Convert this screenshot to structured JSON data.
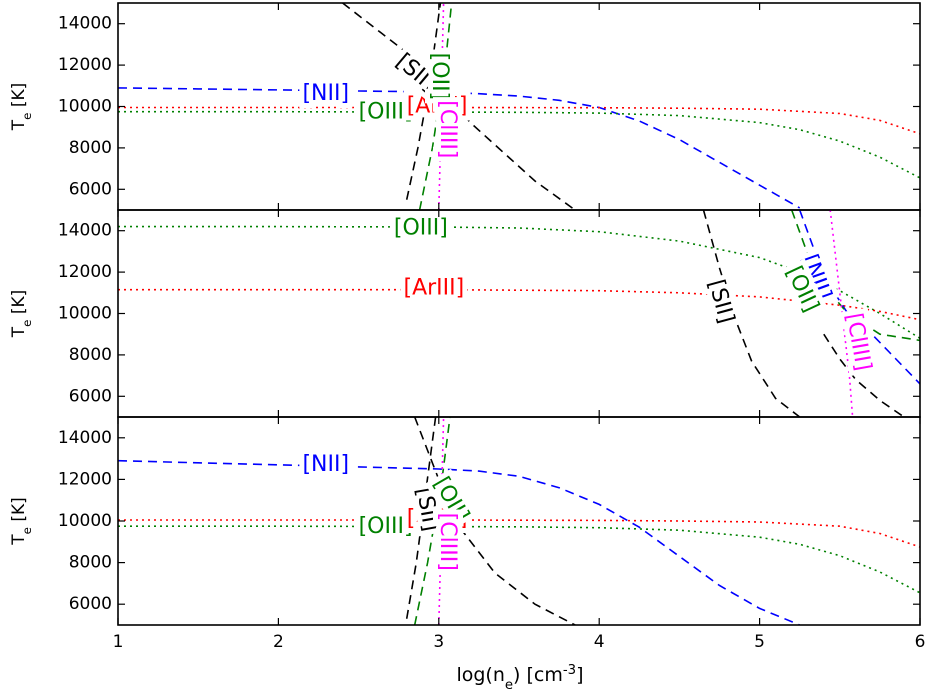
{
  "figure": {
    "shared_xlabel": "log(n_e) [cm^-3]",
    "shared_ylabel": "T_e [K]"
  },
  "colors": {
    "NII": "#0000ff",
    "OIII": "#008000",
    "ArIII": "#ff0000",
    "SII": "#000000",
    "OII": "#008000",
    "ClIII": "#ff00ff"
  },
  "chart_data": [
    {
      "type": "line",
      "xlabel": "log(n_e) [cm^-3]",
      "ylabel": "T_e [K]",
      "xlim": [
        1,
        6
      ],
      "ylim": [
        5000,
        15000
      ],
      "xticks": [
        "1",
        "2",
        "3",
        "4",
        "5",
        "6"
      ],
      "yticks": [
        "6000",
        "8000",
        "10000",
        "12000",
        "14000"
      ],
      "series": [
        {
          "name": "[NII]",
          "style": "dashed",
          "color": "#0000ff",
          "x": [
            1,
            1.5,
            2,
            2.5,
            3,
            3.25,
            3.5,
            3.75,
            4,
            4.25,
            4.5,
            4.75,
            5,
            5.25
          ],
          "y": [
            10900,
            10850,
            10800,
            10750,
            10700,
            10620,
            10500,
            10300,
            9950,
            9300,
            8400,
            7300,
            6200,
            5100
          ],
          "label_x": 2.15,
          "label_y": 10600
        },
        {
          "name": "[OIII]",
          "style": "dotted",
          "color": "#008000",
          "x": [
            1,
            2,
            3,
            3.5,
            4,
            4.5,
            5,
            5.25,
            5.5,
            5.75,
            6
          ],
          "y": [
            9750,
            9750,
            9730,
            9720,
            9680,
            9560,
            9220,
            8880,
            8330,
            7550,
            6550
          ],
          "label_x": 2.5,
          "label_y": 9700
        },
        {
          "name": "[ArIII]",
          "style": "dotted",
          "color": "#ff0000",
          "x": [
            1,
            2,
            3,
            4,
            4.5,
            5,
            5.5,
            5.75,
            6
          ],
          "y": [
            9950,
            9950,
            9950,
            9940,
            9920,
            9870,
            9660,
            9330,
            8680
          ],
          "label_x": 2.8,
          "label_y": 10000
        },
        {
          "name": "[SII]",
          "style": "dashed",
          "color": "#000000",
          "x": [
            2.8,
            2.87,
            2.94,
            3.01
          ],
          "y": [
            5500,
            8000,
            11000,
            15000
          ],
          "label_x": 2.75,
          "label_y": 12300,
          "label_rotate": 40
        },
        {
          "name": "[SII]",
          "style": "dashed",
          "color": "#000000",
          "x": [
            2.4,
            2.8,
            3.2,
            3.6,
            3.85
          ],
          "y": [
            15000,
            12600,
            9200,
            6400,
            5000
          ]
        },
        {
          "name": "[OII]",
          "style": "dashed",
          "color": "#008000",
          "x": [
            2.88,
            2.96,
            3.04,
            3.08
          ],
          "y": [
            5000,
            8000,
            12000,
            15000
          ],
          "label_x": 3.0,
          "label_y": 12600,
          "label_rotate": 90
        },
        {
          "name": "[ClIII]",
          "style": "dotted",
          "color": "#ff00ff",
          "x": [
            3.0,
            3.01,
            3.02,
            3.03
          ],
          "y": [
            5000,
            8000,
            12000,
            15000
          ],
          "label_x": 3.05,
          "label_y": 10300,
          "label_rotate": 90
        }
      ]
    },
    {
      "type": "line",
      "xlabel": "log(n_e) [cm^-3]",
      "ylabel": "T_e [K]",
      "xlim": [
        1,
        6
      ],
      "ylim": [
        5000,
        15000
      ],
      "xticks": [
        "1",
        "2",
        "3",
        "4",
        "5",
        "6"
      ],
      "yticks": [
        "6000",
        "8000",
        "10000",
        "12000",
        "14000"
      ],
      "series": [
        {
          "name": "[OIII]",
          "style": "dotted",
          "color": "#008000",
          "x": [
            1,
            2,
            3,
            3.5,
            4,
            4.5,
            5,
            5.25,
            5.5,
            5.75,
            6
          ],
          "y": [
            14200,
            14200,
            14180,
            14130,
            13950,
            13500,
            12700,
            12000,
            11100,
            10000,
            8800
          ],
          "label_x": 2.72,
          "label_y": 14100
        },
        {
          "name": "[ArIII]",
          "style": "dotted",
          "color": "#ff0000",
          "x": [
            1,
            2,
            3,
            4,
            4.5,
            5,
            5.5,
            5.75,
            6
          ],
          "y": [
            11150,
            11150,
            11150,
            11100,
            11000,
            10800,
            10400,
            10100,
            9700
          ],
          "label_x": 2.78,
          "label_y": 11200
        },
        {
          "name": "[SII]",
          "style": "dashed",
          "color": "#000000",
          "x": [
            4.65,
            4.75,
            4.85,
            4.95,
            5.1,
            5.25
          ],
          "y": [
            15000,
            12200,
            9700,
            7700,
            5900,
            5000
          ],
          "label_x": 4.72,
          "label_y": 11600,
          "label_rotate": 75
        },
        {
          "name": "[SII]",
          "style": "dashed",
          "color": "#000000",
          "x": [
            5.4,
            5.5,
            5.6,
            5.75,
            5.9
          ],
          "y": [
            9000,
            7800,
            6800,
            5800,
            5000
          ]
        },
        {
          "name": "[NII]",
          "style": "dashed",
          "color": "#0000ff",
          "x": [
            5.25,
            5.4,
            5.55,
            5.7,
            5.85,
            6
          ],
          "y": [
            15000,
            11800,
            10000,
            9000,
            7800,
            6600
          ],
          "label_x": 5.3,
          "label_y": 12800,
          "label_rotate": 70
        },
        {
          "name": "[OII]",
          "style": "dashed",
          "color": "#008000",
          "x": [
            5.2,
            5.35,
            5.55,
            5.75,
            6
          ],
          "y": [
            15000,
            11800,
            10000,
            9000,
            8700
          ],
          "label_x": 5.2,
          "label_y": 12200,
          "label_rotate": 65
        },
        {
          "name": "[ClIII]",
          "style": "dotted",
          "color": "#ff00ff",
          "x": [
            5.44,
            5.5,
            5.56,
            5.58
          ],
          "y": [
            15000,
            11000,
            7000,
            5000
          ],
          "label_x": 5.58,
          "label_y": 10000,
          "label_rotate": 80
        }
      ]
    },
    {
      "type": "line",
      "xlabel": "log(n_e) [cm^-3]",
      "ylabel": "T_e [K]",
      "xlim": [
        1,
        6
      ],
      "ylim": [
        5000,
        15000
      ],
      "xticks": [
        "1",
        "2",
        "3",
        "4",
        "5",
        "6"
      ],
      "yticks": [
        "6000",
        "8000",
        "10000",
        "12000",
        "14000"
      ],
      "series": [
        {
          "name": "[NII]",
          "style": "dashed",
          "color": "#0000ff",
          "x": [
            1,
            1.5,
            2,
            2.5,
            3,
            3.25,
            3.5,
            3.75,
            4,
            4.25,
            4.5,
            4.75,
            5,
            5.25
          ],
          "y": [
            12900,
            12800,
            12700,
            12600,
            12500,
            12400,
            12150,
            11600,
            10800,
            9700,
            8300,
            6900,
            5800,
            5000
          ],
          "label_x": 2.15,
          "label_y": 12700
        },
        {
          "name": "[OIII]",
          "style": "dotted",
          "color": "#008000",
          "x": [
            1,
            2,
            3,
            3.5,
            4,
            4.5,
            5,
            5.25,
            5.5,
            5.75,
            6
          ],
          "y": [
            9750,
            9750,
            9730,
            9720,
            9680,
            9560,
            9220,
            8880,
            8330,
            7550,
            6550
          ],
          "label_x": 2.5,
          "label_y": 9700
        },
        {
          "name": "[ArIII]",
          "style": "dotted",
          "color": "#ff0000",
          "x": [
            1,
            2,
            3,
            4,
            4.5,
            5,
            5.5,
            5.75,
            6
          ],
          "y": [
            10050,
            10050,
            10050,
            10030,
            10000,
            9950,
            9750,
            9400,
            8750
          ],
          "label_x": 2.8,
          "label_y": 10100
        },
        {
          "name": "[SII]",
          "style": "dashed",
          "color": "#000000",
          "x": [
            2.8,
            2.86,
            2.92,
            2.98
          ],
          "y": [
            5300,
            8000,
            11500,
            15000
          ],
          "label_x": 2.9,
          "label_y": 11600,
          "label_rotate": 80
        },
        {
          "name": "[SII]",
          "style": "dashed",
          "color": "#000000",
          "x": [
            2.85,
            3.1,
            3.35,
            3.6,
            3.85
          ],
          "y": [
            15000,
            10000,
            7500,
            6000,
            5000
          ]
        },
        {
          "name": "[OII]",
          "style": "dashed",
          "color": "#008000",
          "x": [
            2.85,
            2.93,
            3.02,
            3.07
          ],
          "y": [
            5000,
            8000,
            12000,
            15000
          ],
          "label_x": 3.0,
          "label_y": 12000,
          "label_rotate": 60
        },
        {
          "name": "[ClIII]",
          "style": "dotted",
          "color": "#ff00ff",
          "x": [
            3.0,
            3.01,
            3.02,
            3.03
          ],
          "y": [
            5000,
            8000,
            12000,
            15000
          ],
          "label_x": 3.05,
          "label_y": 10400,
          "label_rotate": 90
        }
      ]
    }
  ]
}
